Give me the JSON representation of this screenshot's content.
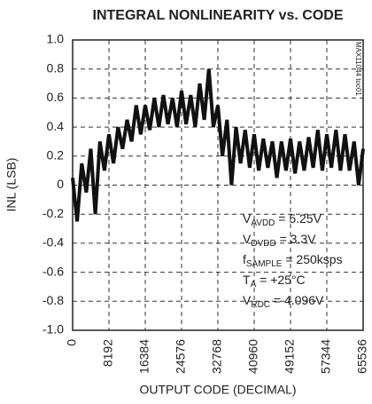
{
  "chart_data": {
    "type": "line",
    "title": "INTEGRAL NONLINEARITY vs. CODE",
    "xlabel": "OUTPUT CODE (DECIMAL)",
    "ylabel": "INL (LSB)",
    "side_note": "MAX11044 toc01",
    "x": [
      0,
      1024,
      2048,
      3072,
      4096,
      5120,
      6144,
      7168,
      8192,
      9216,
      10240,
      11264,
      12288,
      13312,
      14336,
      15360,
      16384,
      17408,
      18432,
      19456,
      20480,
      21504,
      22528,
      23552,
      24576,
      25600,
      26624,
      27648,
      28672,
      29696,
      30720,
      31744,
      32768,
      33792,
      34816,
      35840,
      36864,
      37888,
      38912,
      39936,
      40960,
      41984,
      43008,
      44032,
      45056,
      46080,
      47104,
      48128,
      49152,
      50176,
      51200,
      52224,
      53248,
      54272,
      55296,
      56320,
      57344,
      58368,
      59392,
      60416,
      61440,
      62464,
      63488,
      64512,
      65536
    ],
    "series": [
      {
        "name": "INL",
        "color": "#111111",
        "values": [
          0.05,
          -0.25,
          0.15,
          -0.05,
          0.25,
          -0.2,
          0.3,
          0.1,
          0.35,
          0.15,
          0.4,
          0.25,
          0.45,
          0.3,
          0.55,
          0.35,
          0.55,
          0.38,
          0.6,
          0.4,
          0.62,
          0.42,
          0.6,
          0.4,
          0.65,
          0.42,
          0.62,
          0.4,
          0.7,
          0.45,
          0.8,
          0.4,
          0.55,
          0.2,
          0.45,
          0.0,
          0.4,
          0.15,
          0.38,
          0.12,
          0.35,
          0.1,
          0.32,
          0.12,
          0.3,
          0.05,
          0.3,
          0.1,
          0.32,
          0.08,
          0.3,
          0.1,
          0.33,
          0.12,
          0.38,
          0.1,
          0.35,
          0.12,
          0.38,
          0.1,
          0.35,
          0.1,
          0.3,
          0.0,
          0.25
        ]
      }
    ],
    "xlim": [
      0,
      65536
    ],
    "xticks": [
      0,
      8192,
      16384,
      24576,
      32768,
      40960,
      49152,
      57344,
      65536
    ],
    "ylim": [
      -1.0,
      1.0
    ],
    "yticks": [
      {
        "value": -1.0,
        "label": "-1.0"
      },
      -0.8,
      -0.6,
      -0.4,
      -0.2,
      0,
      0.2,
      0.4,
      0.6,
      0.8,
      {
        "value": 1.0,
        "label": "1.0"
      }
    ],
    "grid": true,
    "annotations": [
      {
        "main": "V",
        "sub": "AVDD",
        "rest": " = 5.25V"
      },
      {
        "main": "V",
        "sub": "DVDD",
        "rest": " = 3.3V"
      },
      {
        "main": "f",
        "sub": "SAMPLE",
        "rest": " = 250ksps"
      },
      {
        "main": "T",
        "sub": "A",
        "rest": " = +25°C"
      },
      {
        "main": "V",
        "sub": "RDC",
        "rest": " = 4.096V"
      }
    ]
  }
}
